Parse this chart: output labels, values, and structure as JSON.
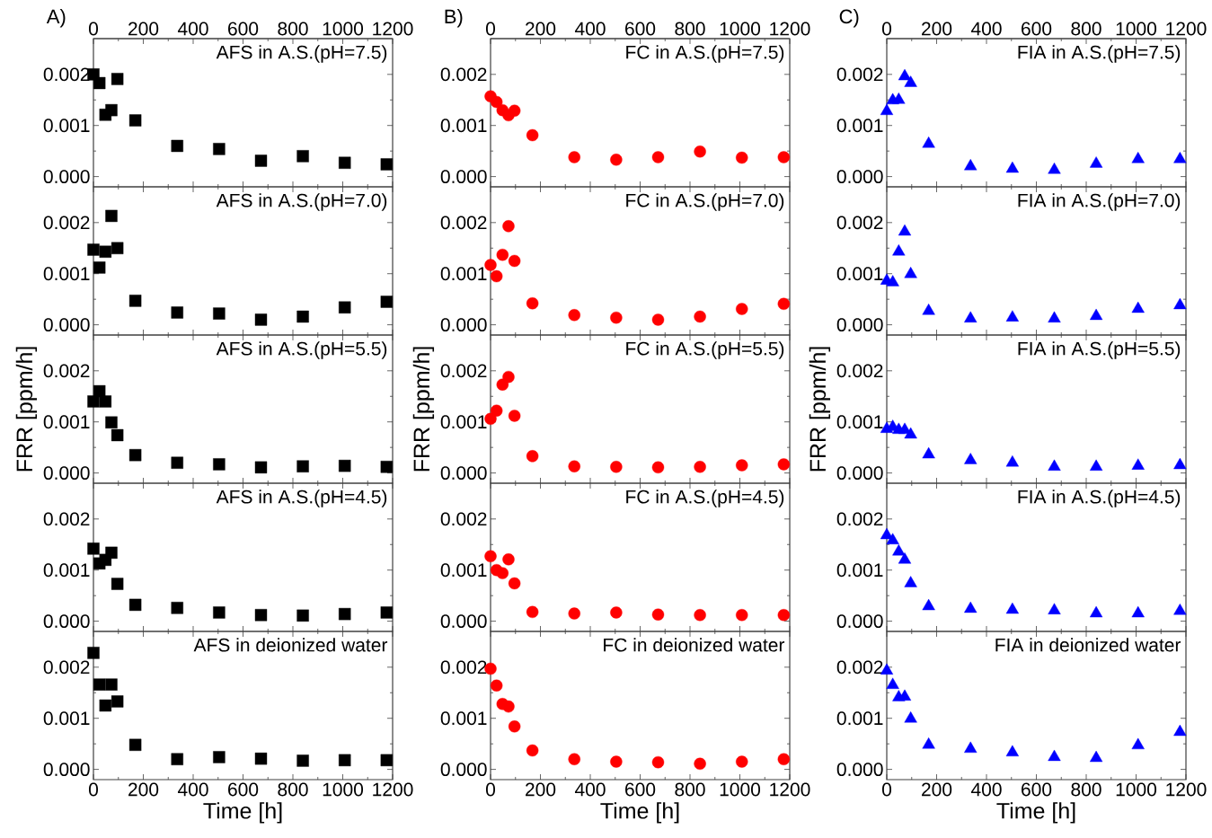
{
  "chart_data": [
    {
      "type": "scatter",
      "title": "A)",
      "annotations": [
        "AFS in A.S.(pH=7.5)"
      ],
      "x": [
        0,
        24,
        48,
        72,
        96,
        168,
        336,
        504,
        672,
        840,
        1008,
        1176
      ],
      "values": [
        0.002,
        0.00183,
        0.00121,
        0.0013,
        0.00191,
        0.0011,
        0.0006,
        0.00054,
        0.00031,
        0.0004,
        0.00027,
        0.00024
      ],
      "color": "#000000",
      "marker": "square",
      "xlim": [
        0,
        1200
      ],
      "xticks": [
        0,
        200,
        400,
        600,
        800,
        1000,
        1200
      ],
      "x2lim": [
        0,
        1200
      ],
      "x2ticks": [
        0,
        200,
        400,
        600,
        800,
        1000,
        1200
      ],
      "ylim": [
        -0.0002,
        0.0027
      ],
      "yticks": [
        {
          "value": 0,
          "label": "0.000"
        },
        {
          "value": 0.001,
          "label": "0.001"
        },
        {
          "value": 0.002,
          "label": "0.002"
        }
      ],
      "tick_labels": "y"
    },
    {
      "type": "scatter",
      "title": "B)",
      "annotations": [
        "FC in A.S.(pH=7.5)"
      ],
      "x": [
        0,
        24,
        48,
        72,
        96,
        168,
        336,
        504,
        672,
        840,
        1008,
        1176
      ],
      "values": [
        0.00157,
        0.00146,
        0.0013,
        0.0012,
        0.00129,
        0.00081,
        0.00038,
        0.00033,
        0.00038,
        0.00049,
        0.00037,
        0.00038
      ],
      "color": "#ff0000",
      "marker": "circle",
      "xlim": [
        0,
        1200
      ],
      "xticks": [
        0,
        200,
        400,
        600,
        800,
        1000,
        1200
      ],
      "x2lim": [
        0,
        1200
      ],
      "x2ticks": [
        0,
        200,
        400,
        600,
        800,
        1000,
        1200
      ],
      "ylim": [
        -0.0002,
        0.0027
      ],
      "yticks": [
        {
          "value": 0,
          "label": "0.000"
        },
        {
          "value": 0.001,
          "label": "0.001"
        },
        {
          "value": 0.002,
          "label": "0.002"
        }
      ],
      "tick_labels": "y"
    },
    {
      "type": "scatter",
      "title": "C)",
      "annotations": [
        "FIA in A.S.(pH=7.5)"
      ],
      "x": [
        0,
        24,
        48,
        72,
        96,
        168,
        336,
        504,
        672,
        840,
        1008,
        1176
      ],
      "values": [
        0.00128,
        0.00149,
        0.0015,
        0.00196,
        0.00183,
        0.00064,
        0.0002,
        0.00015,
        0.00013,
        0.00025,
        0.00034,
        0.00034
      ],
      "color": "#0000ff",
      "marker": "triangle",
      "xlim": [
        0,
        1200
      ],
      "xticks": [
        0,
        200,
        400,
        600,
        800,
        1000,
        1200
      ],
      "x2lim": [
        0,
        1200
      ],
      "x2ticks": [
        0,
        200,
        400,
        600,
        800,
        1000,
        1200
      ],
      "ylim": [
        -0.0002,
        0.0027
      ],
      "yticks": [
        {
          "value": 0,
          "label": "0.000"
        },
        {
          "value": 0.001,
          "label": "0.001"
        },
        {
          "value": 0.002,
          "label": "0.002"
        }
      ],
      "tick_labels": "y"
    },
    {
      "type": "scatter",
      "annotations": [
        "AFS in A.S.(pH=7.0)"
      ],
      "x": [
        0,
        24,
        48,
        72,
        96,
        168,
        336,
        504,
        672,
        840,
        1008,
        1176
      ],
      "values": [
        0.00147,
        0.00112,
        0.00143,
        0.00213,
        0.0015,
        0.00047,
        0.00024,
        0.00022,
        0.0001,
        0.00016,
        0.00034,
        0.00045
      ],
      "color": "#000000",
      "marker": "square",
      "xlim": [
        0,
        1200
      ],
      "xticks": [
        0,
        200,
        400,
        600,
        800,
        1000,
        1200
      ],
      "ylim": [
        -0.0002,
        0.0027
      ],
      "yticks": [
        {
          "value": 0,
          "label": "0.000"
        },
        {
          "value": 0.001,
          "label": "0.001"
        },
        {
          "value": 0.002,
          "label": "0.002"
        }
      ],
      "tick_labels": "y"
    },
    {
      "type": "scatter",
      "annotations": [
        "FC in A.S.(pH=7.0)"
      ],
      "x": [
        0,
        24,
        48,
        72,
        96,
        168,
        336,
        504,
        672,
        840,
        1008,
        1176
      ],
      "values": [
        0.00117,
        0.00095,
        0.00137,
        0.00193,
        0.00125,
        0.00042,
        0.00019,
        0.00014,
        0.0001,
        0.00016,
        0.00031,
        0.00041
      ],
      "color": "#ff0000",
      "marker": "circle",
      "xlim": [
        0,
        1200
      ],
      "xticks": [
        0,
        200,
        400,
        600,
        800,
        1000,
        1200
      ],
      "ylim": [
        -0.0002,
        0.0027
      ],
      "yticks": [
        {
          "value": 0,
          "label": "0.000"
        },
        {
          "value": 0.001,
          "label": "0.001"
        },
        {
          "value": 0.002,
          "label": "0.002"
        }
      ],
      "tick_labels": "y"
    },
    {
      "type": "scatter",
      "annotations": [
        "FIA in A.S.(pH=7.0)"
      ],
      "x": [
        0,
        24,
        48,
        72,
        96,
        168,
        336,
        504,
        672,
        840,
        1008,
        1176
      ],
      "values": [
        0.00086,
        0.00083,
        0.00143,
        0.00182,
        0.00099,
        0.00027,
        0.00012,
        0.00014,
        0.00012,
        0.00017,
        0.00031,
        0.00038
      ],
      "color": "#0000ff",
      "marker": "triangle",
      "xlim": [
        0,
        1200
      ],
      "xticks": [
        0,
        200,
        400,
        600,
        800,
        1000,
        1200
      ],
      "ylim": [
        -0.0002,
        0.0027
      ],
      "yticks": [
        {
          "value": 0,
          "label": "0.000"
        },
        {
          "value": 0.001,
          "label": "0.001"
        },
        {
          "value": 0.002,
          "label": "0.002"
        }
      ],
      "tick_labels": "y"
    },
    {
      "type": "scatter",
      "ylabel": "FRR [ppm/h]",
      "annotations": [
        "AFS in A.S.(pH=5.5)"
      ],
      "x": [
        0,
        24,
        48,
        72,
        96,
        168,
        336,
        504,
        672,
        840,
        1008,
        1176
      ],
      "values": [
        0.0014,
        0.0016,
        0.0014,
        0.00099,
        0.00074,
        0.00035,
        0.0002,
        0.00017,
        0.00011,
        0.00013,
        0.00014,
        0.00012
      ],
      "color": "#000000",
      "marker": "square",
      "xlim": [
        0,
        1200
      ],
      "xticks": [
        0,
        200,
        400,
        600,
        800,
        1000,
        1200
      ],
      "ylim": [
        -0.0002,
        0.0027
      ],
      "yticks": [
        {
          "value": 0,
          "label": "0.000"
        },
        {
          "value": 0.001,
          "label": "0.001"
        },
        {
          "value": 0.002,
          "label": "0.002"
        }
      ],
      "tick_labels": "y"
    },
    {
      "type": "scatter",
      "ylabel": "FRR [ppm/h]",
      "annotations": [
        "FC in A.S.(pH=5.5)"
      ],
      "x": [
        0,
        24,
        48,
        72,
        96,
        168,
        336,
        504,
        672,
        840,
        1008,
        1176
      ],
      "values": [
        0.00106,
        0.00122,
        0.00173,
        0.00188,
        0.00112,
        0.00033,
        0.00013,
        0.00012,
        0.00011,
        0.00012,
        0.00015,
        0.00017
      ],
      "color": "#ff0000",
      "marker": "circle",
      "xlim": [
        0,
        1200
      ],
      "xticks": [
        0,
        200,
        400,
        600,
        800,
        1000,
        1200
      ],
      "ylim": [
        -0.0002,
        0.0027
      ],
      "yticks": [
        {
          "value": 0,
          "label": "0.000"
        },
        {
          "value": 0.001,
          "label": "0.001"
        },
        {
          "value": 0.002,
          "label": "0.002"
        }
      ],
      "tick_labels": "y"
    },
    {
      "type": "scatter",
      "ylabel": "FRR [ppm/h]",
      "annotations": [
        "FIA in A.S.(pH=5.5)"
      ],
      "x": [
        0,
        24,
        48,
        72,
        96,
        168,
        336,
        504,
        672,
        840,
        1008,
        1176
      ],
      "values": [
        0.00086,
        0.0009,
        0.00084,
        0.00084,
        0.00075,
        0.00036,
        0.00025,
        0.0002,
        0.00012,
        0.00012,
        0.00014,
        0.00015
      ],
      "color": "#0000ff",
      "marker": "triangle",
      "xlim": [
        0,
        1200
      ],
      "xticks": [
        0,
        200,
        400,
        600,
        800,
        1000,
        1200
      ],
      "ylim": [
        -0.0002,
        0.0027
      ],
      "yticks": [
        {
          "value": 0,
          "label": "0.000"
        },
        {
          "value": 0.001,
          "label": "0.001"
        },
        {
          "value": 0.002,
          "label": "0.002"
        }
      ],
      "tick_labels": "y"
    },
    {
      "type": "scatter",
      "annotations": [
        "AFS in A.S.(pH=4.5)"
      ],
      "x": [
        0,
        24,
        48,
        72,
        96,
        168,
        336,
        504,
        672,
        840,
        1008,
        1176
      ],
      "values": [
        0.00142,
        0.00113,
        0.0012,
        0.00134,
        0.00073,
        0.00032,
        0.00026,
        0.00017,
        0.00012,
        0.00011,
        0.00014,
        0.00017
      ],
      "color": "#000000",
      "marker": "square",
      "xlim": [
        0,
        1200
      ],
      "xticks": [
        0,
        200,
        400,
        600,
        800,
        1000,
        1200
      ],
      "ylim": [
        -0.0002,
        0.0027
      ],
      "yticks": [
        {
          "value": 0,
          "label": "0.000"
        },
        {
          "value": 0.001,
          "label": "0.001"
        },
        {
          "value": 0.002,
          "label": "0.002"
        }
      ],
      "tick_labels": "y"
    },
    {
      "type": "scatter",
      "annotations": [
        "FC in A.S.(pH=4.5)"
      ],
      "x": [
        0,
        24,
        48,
        72,
        96,
        168,
        336,
        504,
        672,
        840,
        1008,
        1176
      ],
      "values": [
        0.00127,
        0.001,
        0.00094,
        0.00121,
        0.00074,
        0.00018,
        0.00015,
        0.00017,
        0.00013,
        0.00012,
        0.00012,
        0.00012
      ],
      "color": "#ff0000",
      "marker": "circle",
      "xlim": [
        0,
        1200
      ],
      "xticks": [
        0,
        200,
        400,
        600,
        800,
        1000,
        1200
      ],
      "ylim": [
        -0.0002,
        0.0027
      ],
      "yticks": [
        {
          "value": 0,
          "label": "0.000"
        },
        {
          "value": 0.001,
          "label": "0.001"
        },
        {
          "value": 0.002,
          "label": "0.002"
        }
      ],
      "tick_labels": "y"
    },
    {
      "type": "scatter",
      "annotations": [
        "FIA in A.S.(pH=4.5)"
      ],
      "x": [
        0,
        24,
        48,
        72,
        96,
        168,
        336,
        504,
        672,
        840,
        1008,
        1176
      ],
      "values": [
        0.00168,
        0.00158,
        0.00136,
        0.0012,
        0.00074,
        0.00029,
        0.00024,
        0.00022,
        0.00021,
        0.00015,
        0.00015,
        0.0002
      ],
      "color": "#0000ff",
      "marker": "triangle",
      "xlim": [
        0,
        1200
      ],
      "xticks": [
        0,
        200,
        400,
        600,
        800,
        1000,
        1200
      ],
      "ylim": [
        -0.0002,
        0.0027
      ],
      "yticks": [
        {
          "value": 0,
          "label": "0.000"
        },
        {
          "value": 0.001,
          "label": "0.001"
        },
        {
          "value": 0.002,
          "label": "0.002"
        }
      ],
      "tick_labels": "y"
    },
    {
      "type": "scatter",
      "xlabel": "Time [h]",
      "annotations": [
        "AFS in deionized water"
      ],
      "x": [
        0,
        24,
        48,
        72,
        96,
        168,
        336,
        504,
        672,
        840,
        1008,
        1176
      ],
      "values": [
        0.00228,
        0.00166,
        0.00125,
        0.00166,
        0.00133,
        0.00048,
        0.0002,
        0.00024,
        0.00021,
        0.00017,
        0.00018,
        0.00018
      ],
      "color": "#000000",
      "marker": "square",
      "xlim": [
        0,
        1200
      ],
      "xticks": [
        0,
        200,
        400,
        600,
        800,
        1000,
        1200
      ],
      "ylim": [
        -0.0002,
        0.0027
      ],
      "yticks": [
        {
          "value": 0,
          "label": "0.000"
        },
        {
          "value": 0.001,
          "label": "0.001"
        },
        {
          "value": 0.002,
          "label": "0.002"
        }
      ]
    },
    {
      "type": "scatter",
      "xlabel": "Time [h]",
      "annotations": [
        "FC in deionized water"
      ],
      "x": [
        0,
        24,
        48,
        72,
        96,
        168,
        336,
        504,
        672,
        840,
        1008,
        1176
      ],
      "values": [
        0.00197,
        0.00164,
        0.00128,
        0.00123,
        0.00084,
        0.00037,
        0.0002,
        0.00015,
        0.00014,
        0.00011,
        0.00015,
        0.0002
      ],
      "color": "#ff0000",
      "marker": "circle",
      "xlim": [
        0,
        1200
      ],
      "xticks": [
        0,
        200,
        400,
        600,
        800,
        1000,
        1200
      ],
      "ylim": [
        -0.0002,
        0.0027
      ],
      "yticks": [
        {
          "value": 0,
          "label": "0.000"
        },
        {
          "value": 0.001,
          "label": "0.001"
        },
        {
          "value": 0.002,
          "label": "0.002"
        }
      ]
    },
    {
      "type": "scatter",
      "xlabel": "Time [h]",
      "annotations": [
        "FIA in deionized water"
      ],
      "x": [
        0,
        24,
        48,
        72,
        96,
        168,
        336,
        504,
        672,
        840,
        1008,
        1176
      ],
      "values": [
        0.00193,
        0.00165,
        0.00141,
        0.00142,
        0.00099,
        0.00048,
        0.0004,
        0.00033,
        0.00024,
        0.00022,
        0.00047,
        0.00073
      ],
      "color": "#0000ff",
      "marker": "triangle",
      "xlim": [
        0,
        1200
      ],
      "xticks": [
        0,
        200,
        400,
        600,
        800,
        1000,
        1200
      ],
      "ylim": [
        -0.0002,
        0.0027
      ],
      "yticks": [
        {
          "value": 0,
          "label": "0.000"
        },
        {
          "value": 0.001,
          "label": "0.001"
        },
        {
          "value": 0.002,
          "label": "0.002"
        }
      ]
    }
  ]
}
